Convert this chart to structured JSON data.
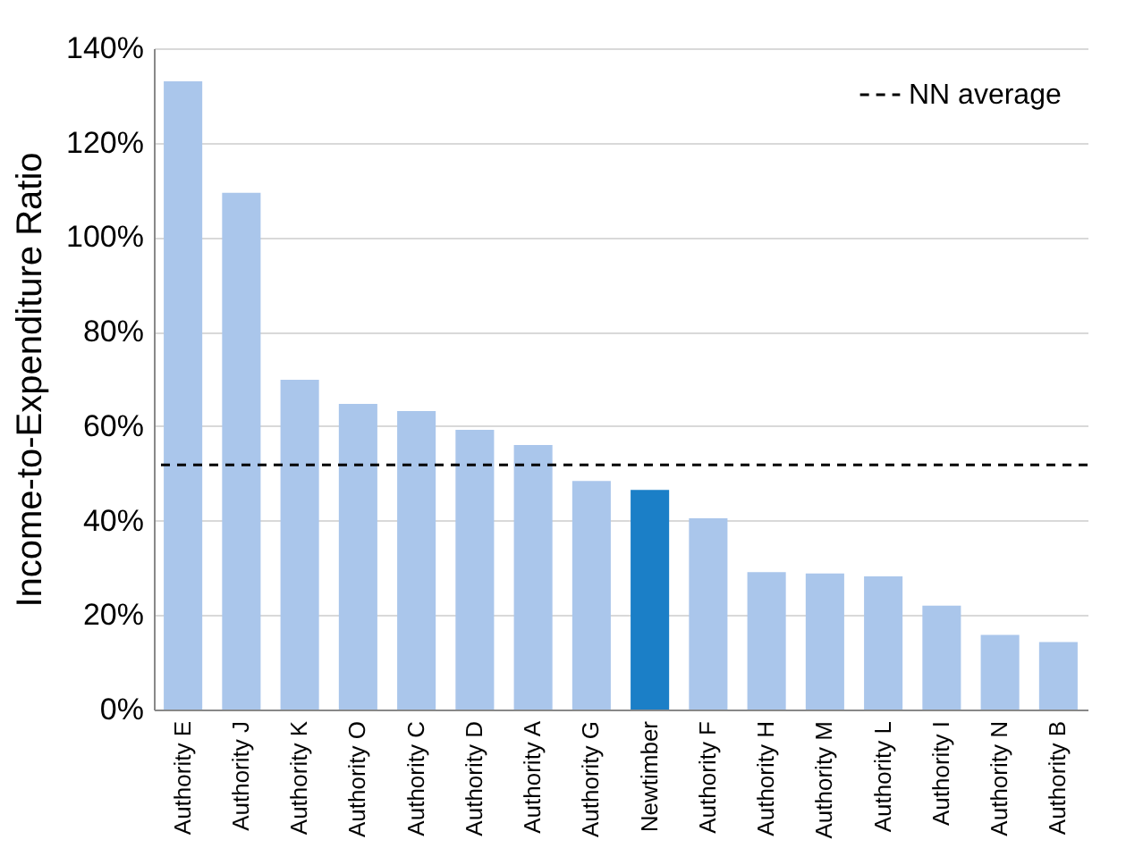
{
  "chart_data": {
    "type": "bar",
    "ylabel": "Income-to-Expenditure Ratio",
    "categories": [
      "Authority E",
      "Authority J",
      "Authority K",
      "Authority O",
      "Authority C",
      "Authority D",
      "Authority A",
      "Authority G",
      "Newtimber",
      "Authority F",
      "Authority H",
      "Authority M",
      "Authority L",
      "Authority I",
      "Authority N",
      "Authority B"
    ],
    "values": [
      133,
      109.4,
      69.8,
      64.7,
      63.2,
      59.2,
      56,
      48.4,
      46.5,
      40.5,
      29.1,
      28.8,
      28.2,
      22,
      15.8,
      14.3
    ],
    "colors": [
      "#aac6eb",
      "#aac6eb",
      "#aac6eb",
      "#aac6eb",
      "#aac6eb",
      "#aac6eb",
      "#aac6eb",
      "#aac6eb",
      "#1b7fc7",
      "#aac6eb",
      "#aac6eb",
      "#aac6eb",
      "#aac6eb",
      "#aac6eb",
      "#aac6eb",
      "#aac6eb"
    ],
    "ylim": [
      0,
      140
    ],
    "yticks": [
      {
        "value": 0,
        "label": "0%"
      },
      {
        "value": 20,
        "label": "20%"
      },
      {
        "value": 40,
        "label": "40%"
      },
      {
        "value": 60,
        "label": "60%"
      },
      {
        "value": 80,
        "label": "80%"
      },
      {
        "value": 100,
        "label": "100%"
      },
      {
        "value": 120,
        "label": "120%"
      },
      {
        "value": 140,
        "label": "140%"
      }
    ],
    "grid": "y",
    "legend": "top right",
    "ref_lines": [
      {
        "axis": "y",
        "value": 51.8,
        "label": "NN average",
        "color": "#000000",
        "line_style": "dashed"
      }
    ]
  }
}
